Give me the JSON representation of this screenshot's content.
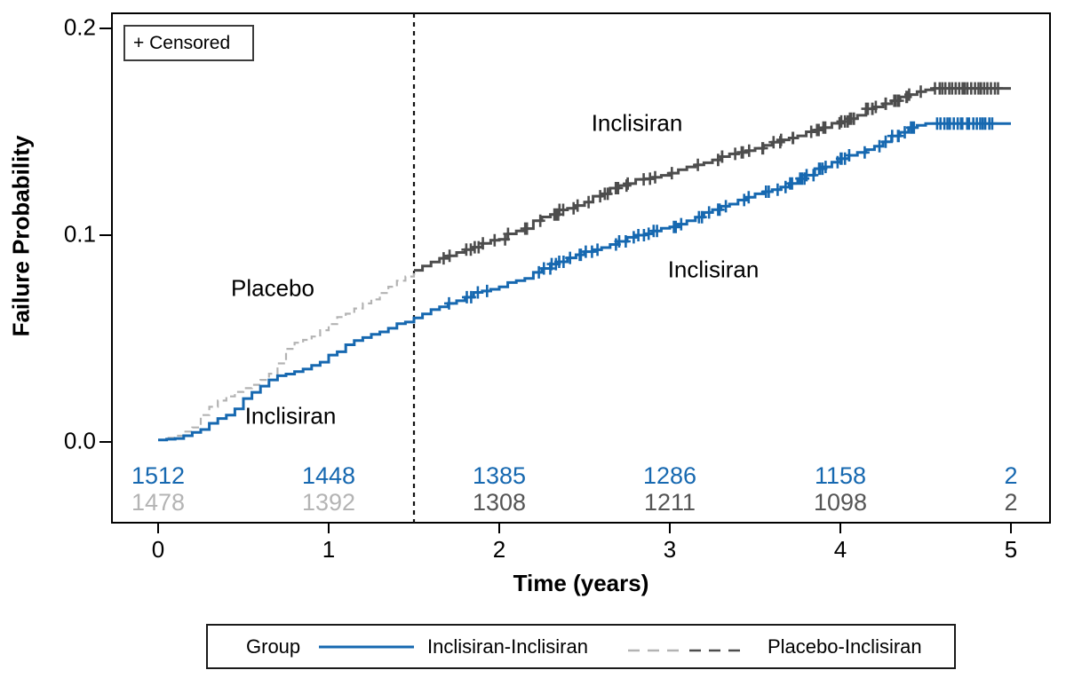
{
  "axes": {
    "y_label": "Failure Probability",
    "x_label": "Time (years)",
    "y_tick_labels": [
      "0.2",
      "0.1",
      "0.0"
    ],
    "x_tick_labels": [
      "0",
      "1",
      "2",
      "3",
      "4",
      "5"
    ],
    "y_range": [
      0,
      0.2
    ],
    "x_range": [
      0,
      5
    ]
  },
  "censored_box_label": "+ Censored",
  "annotations": {
    "placebo_early": "Placebo",
    "inclisiran_early": "Inclisiran",
    "inclisiran_top": "Inclisiran",
    "inclisiran_bottom": "Inclisiran"
  },
  "at_risk": {
    "row1": [
      "1512",
      "1448",
      "1385",
      "1286",
      "1158",
      "2"
    ],
    "row2": [
      "1478",
      "1392",
      "1308",
      "1211",
      "1098",
      "2"
    ],
    "row2_colors": [
      "light",
      "light",
      "dark",
      "dark",
      "dark",
      "dark"
    ]
  },
  "legend": {
    "title": "Group",
    "items": [
      {
        "label": "Inclisiran-Inclisiran",
        "style": "solid"
      },
      {
        "label": "Placebo-Inclisiran",
        "style": "dashed-two-tone"
      }
    ]
  },
  "colors": {
    "inclisiran_blue": "#1668b0",
    "placebo_phase_gray": "#b3b3b3",
    "placebo_inclisiran_dark": "#4d4d4d",
    "at_risk_light": "#b4b4b4",
    "at_risk_dark": "#555555",
    "axis_black": "#000000"
  },
  "chart_data": {
    "type": "line",
    "subtype": "kaplan-meier-step",
    "title": "",
    "xlabel": "Time (years)",
    "ylabel": "Failure Probability",
    "xlim": [
      0,
      5
    ],
    "ylim": [
      0,
      0.2
    ],
    "grid": false,
    "reference_line_x": 1.5,
    "legend_position": "bottom",
    "series": [
      {
        "name": "Placebo-Inclisiran (placebo phase)",
        "color": "#b3b3b3",
        "style": "dashed",
        "width": 2.2,
        "seed": 11,
        "points": [
          [
            0,
            0.001
          ],
          [
            0.1,
            0.003
          ],
          [
            0.2,
            0.007
          ],
          [
            0.25,
            0.013
          ],
          [
            0.3,
            0.017
          ],
          [
            0.35,
            0.02
          ],
          [
            0.4,
            0.022
          ],
          [
            0.5,
            0.026
          ],
          [
            0.6,
            0.03
          ],
          [
            0.65,
            0.033
          ],
          [
            0.7,
            0.038
          ],
          [
            0.75,
            0.045
          ],
          [
            0.8,
            0.048
          ],
          [
            0.9,
            0.051
          ],
          [
            1.0,
            0.057
          ],
          [
            1.1,
            0.062
          ],
          [
            1.2,
            0.067
          ],
          [
            1.3,
            0.072
          ],
          [
            1.4,
            0.078
          ],
          [
            1.5,
            0.083
          ]
        ]
      },
      {
        "name": "Placebo-Inclisiran (inclisiran phase)",
        "color": "#4d4d4d",
        "style": "solid",
        "width": 3,
        "seed": 23,
        "censoring": {
          "from": 1.52,
          "to": 4.5,
          "count": 80,
          "tail_from": 4.55,
          "tail_to": 4.93,
          "tail_count": 20
        },
        "points": [
          [
            1.5,
            0.083
          ],
          [
            1.6,
            0.087
          ],
          [
            1.7,
            0.09
          ],
          [
            1.8,
            0.093
          ],
          [
            1.9,
            0.096
          ],
          [
            2.0,
            0.098
          ],
          [
            2.1,
            0.102
          ],
          [
            2.2,
            0.107
          ],
          [
            2.3,
            0.11
          ],
          [
            2.4,
            0.113
          ],
          [
            2.5,
            0.116
          ],
          [
            2.6,
            0.12
          ],
          [
            2.7,
            0.124
          ],
          [
            2.8,
            0.127
          ],
          [
            2.9,
            0.128
          ],
          [
            3.0,
            0.13
          ],
          [
            3.1,
            0.133
          ],
          [
            3.2,
            0.135
          ],
          [
            3.3,
            0.138
          ],
          [
            3.4,
            0.14
          ],
          [
            3.5,
            0.142
          ],
          [
            3.6,
            0.145
          ],
          [
            3.7,
            0.147
          ],
          [
            3.8,
            0.15
          ],
          [
            3.9,
            0.152
          ],
          [
            4.0,
            0.155
          ],
          [
            4.1,
            0.158
          ],
          [
            4.2,
            0.162
          ],
          [
            4.3,
            0.165
          ],
          [
            4.4,
            0.168
          ],
          [
            4.55,
            0.171
          ],
          [
            5.0,
            0.171
          ]
        ]
      },
      {
        "name": "Inclisiran-Inclisiran",
        "color": "#1668b0",
        "style": "solid",
        "width": 3,
        "seed": 7,
        "censoring": {
          "from": 1.6,
          "to": 4.5,
          "count": 70,
          "tail_from": 4.56,
          "tail_to": 4.9,
          "tail_count": 18
        },
        "points": [
          [
            0,
            0.001
          ],
          [
            0.15,
            0.003
          ],
          [
            0.25,
            0.006
          ],
          [
            0.3,
            0.009
          ],
          [
            0.4,
            0.013
          ],
          [
            0.45,
            0.016
          ],
          [
            0.5,
            0.021
          ],
          [
            0.55,
            0.024
          ],
          [
            0.6,
            0.027
          ],
          [
            0.65,
            0.03
          ],
          [
            0.7,
            0.032
          ],
          [
            0.8,
            0.034
          ],
          [
            0.9,
            0.037
          ],
          [
            1.0,
            0.042
          ],
          [
            1.1,
            0.047
          ],
          [
            1.15,
            0.049
          ],
          [
            1.25,
            0.052
          ],
          [
            1.35,
            0.055
          ],
          [
            1.45,
            0.058
          ],
          [
            1.5,
            0.06
          ],
          [
            1.6,
            0.064
          ],
          [
            1.7,
            0.067
          ],
          [
            1.8,
            0.07
          ],
          [
            1.9,
            0.073
          ],
          [
            2.0,
            0.075
          ],
          [
            2.1,
            0.078
          ],
          [
            2.2,
            0.082
          ],
          [
            2.3,
            0.086
          ],
          [
            2.4,
            0.089
          ],
          [
            2.5,
            0.092
          ],
          [
            2.6,
            0.094
          ],
          [
            2.7,
            0.097
          ],
          [
            2.8,
            0.1
          ],
          [
            2.9,
            0.102
          ],
          [
            3.0,
            0.104
          ],
          [
            3.1,
            0.107
          ],
          [
            3.2,
            0.111
          ],
          [
            3.3,
            0.114
          ],
          [
            3.4,
            0.117
          ],
          [
            3.5,
            0.12
          ],
          [
            3.6,
            0.122
          ],
          [
            3.7,
            0.125
          ],
          [
            3.8,
            0.129
          ],
          [
            3.9,
            0.133
          ],
          [
            4.0,
            0.137
          ],
          [
            4.1,
            0.14
          ],
          [
            4.2,
            0.143
          ],
          [
            4.3,
            0.148
          ],
          [
            4.4,
            0.152
          ],
          [
            4.5,
            0.154
          ],
          [
            5.0,
            0.154
          ]
        ]
      }
    ],
    "at_risk_table": {
      "times": [
        0,
        1,
        2,
        3,
        4,
        5
      ],
      "rows": [
        {
          "name": "Inclisiran-Inclisiran",
          "values": [
            1512,
            1448,
            1385,
            1286,
            1158,
            2
          ]
        },
        {
          "name": "Placebo-Inclisiran",
          "values": [
            1478,
            1392,
            1308,
            1211,
            1098,
            2
          ]
        }
      ]
    }
  }
}
